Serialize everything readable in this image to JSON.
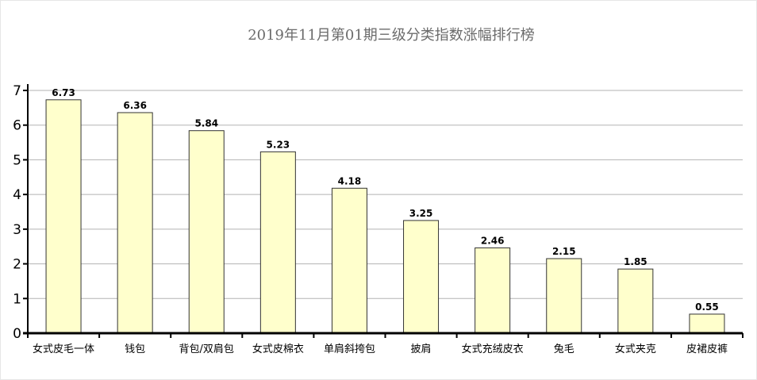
{
  "chart_data": {
    "type": "bar",
    "title": "2019年11月第01期三级分类指数涨幅排行榜",
    "xlabel": "",
    "ylabel": "",
    "ylim": [
      0,
      7
    ],
    "yticks": [
      0,
      1,
      2,
      3,
      4,
      5,
      6,
      7
    ],
    "grid": true,
    "legend": "none",
    "categories": [
      "女式皮毛一体",
      "钱包",
      "背包/双肩包",
      "女式皮棉衣",
      "单肩斜挎包",
      "披肩",
      "女式充绒皮衣",
      "兔毛",
      "女式夹克",
      "皮裙皮裤"
    ],
    "values": [
      6.73,
      6.36,
      5.84,
      5.23,
      4.18,
      3.25,
      2.46,
      2.15,
      1.85,
      0.55
    ],
    "data_labels": [
      "6.73",
      "6.36",
      "5.84",
      "5.23",
      "4.18",
      "3.25",
      "2.46",
      "2.15",
      "1.85",
      "0.55"
    ],
    "colors": {
      "bar_fill": "#ffffcc",
      "bar_stroke": "#333333",
      "grid": "#b3b3b3",
      "axis": "#000000",
      "title": "#6b6b6b"
    }
  }
}
